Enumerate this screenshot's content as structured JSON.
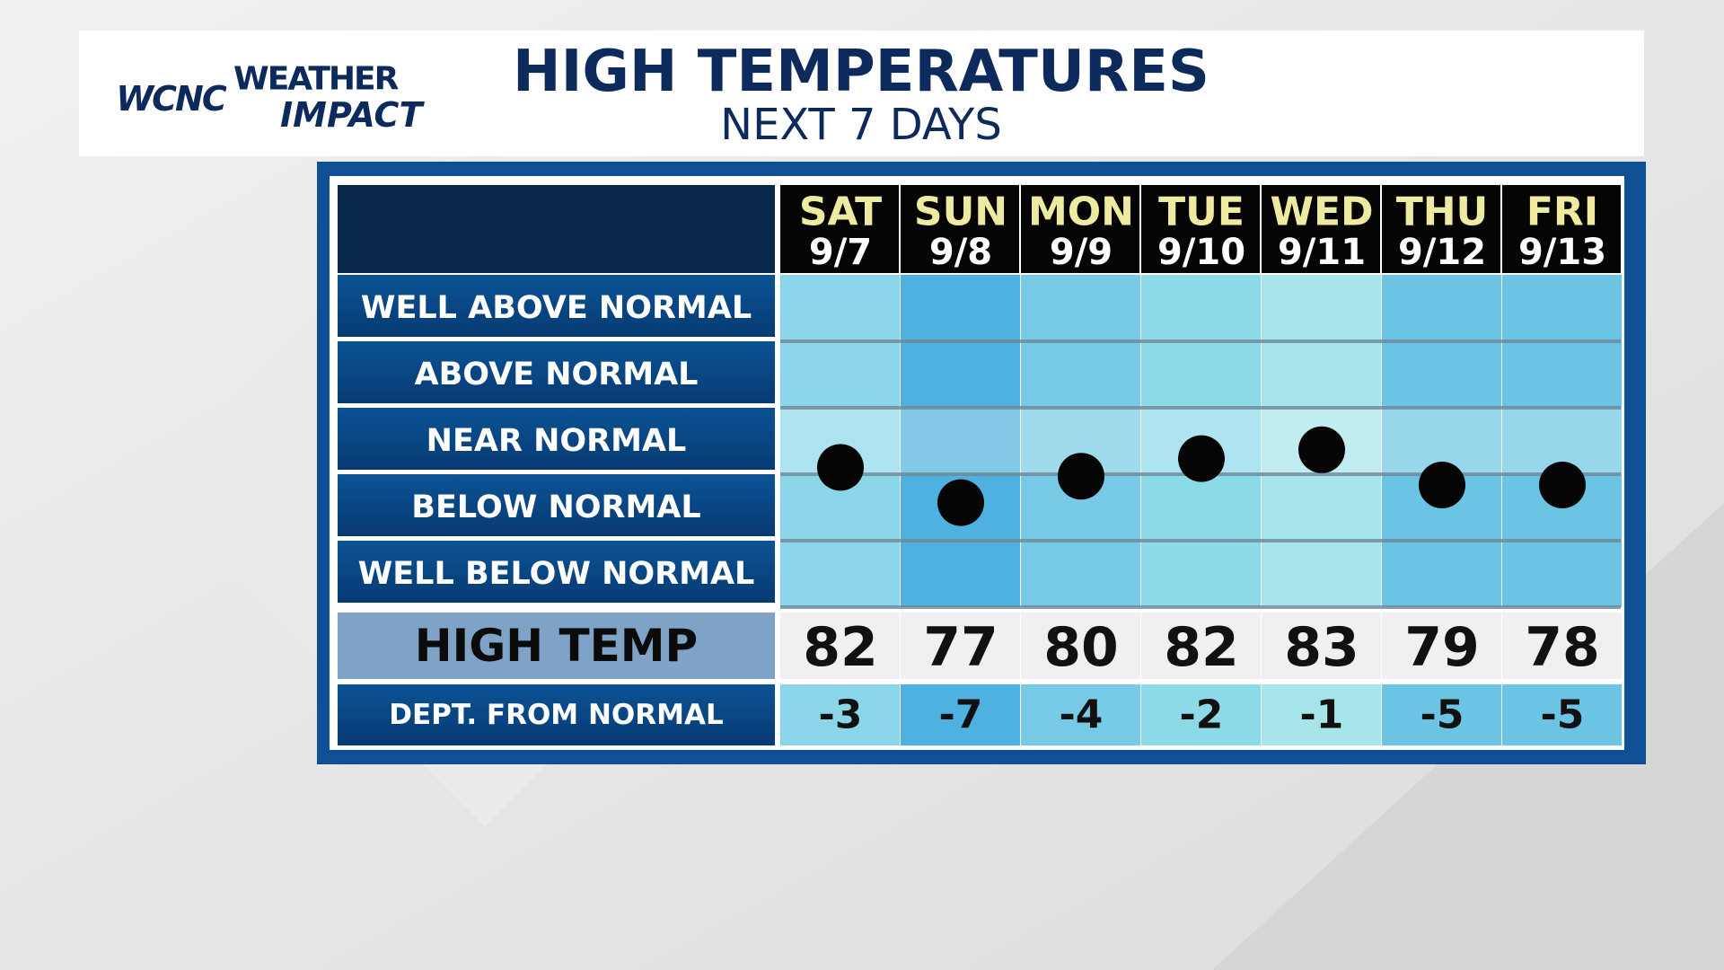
{
  "header": {
    "brand": "WCNC",
    "brand_line1": "WEATHER",
    "brand_line2": "IMPACT",
    "title": "HIGH TEMPERATURES",
    "subtitle": "NEXT 7 DAYS"
  },
  "rows": [
    "WELL ABOVE NORMAL",
    "ABOVE NORMAL",
    "NEAR NORMAL",
    "BELOW NORMAL",
    "WELL BELOW NORMAL"
  ],
  "high_temp_label": "HIGH TEMP",
  "departure_label": "DEPT. FROM NORMAL",
  "days": [
    "SAT",
    "SUN",
    "MON",
    "TUE",
    "WED",
    "THU",
    "FRI"
  ],
  "dates": [
    "9/7",
    "9/8",
    "9/9",
    "9/10",
    "9/11",
    "9/12",
    "9/13"
  ],
  "high_temps": [
    82,
    77,
    80,
    82,
    83,
    79,
    78
  ],
  "departures": [
    -3,
    -7,
    -4,
    -2,
    -1,
    -5,
    -5
  ],
  "column_colors": [
    "#8ad6e8",
    "#4fb1df",
    "#78cbe6",
    "#8cd9e8",
    "#a6e6ea",
    "#6cc4e4",
    "#6cc4e4"
  ]
}
